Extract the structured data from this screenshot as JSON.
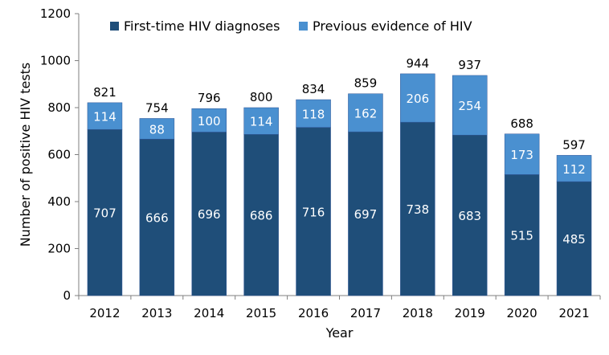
{
  "chart_data": {
    "type": "bar",
    "stacked": true,
    "categories": [
      "2012",
      "2013",
      "2014",
      "2015",
      "2016",
      "2017",
      "2018",
      "2019",
      "2020",
      "2021"
    ],
    "series": [
      {
        "name": "First-time HIV diagnoses",
        "color": "#1F4E79",
        "values": [
          707,
          666,
          696,
          686,
          716,
          697,
          738,
          683,
          515,
          485
        ]
      },
      {
        "name": "Previous evidence of HIV",
        "color": "#4A90D0",
        "values": [
          114,
          88,
          100,
          114,
          118,
          162,
          206,
          254,
          173,
          112
        ]
      }
    ],
    "totals": [
      821,
      754,
      796,
      800,
      834,
      859,
      944,
      937,
      688,
      597
    ],
    "xlabel": "Year",
    "ylabel": "Number of positive HIV tests",
    "ylim": [
      0,
      1200
    ],
    "yticks": [
      0,
      200,
      400,
      600,
      800,
      1000,
      1200
    ],
    "grid": false,
    "legend_position": "top",
    "data_labels": true
  }
}
